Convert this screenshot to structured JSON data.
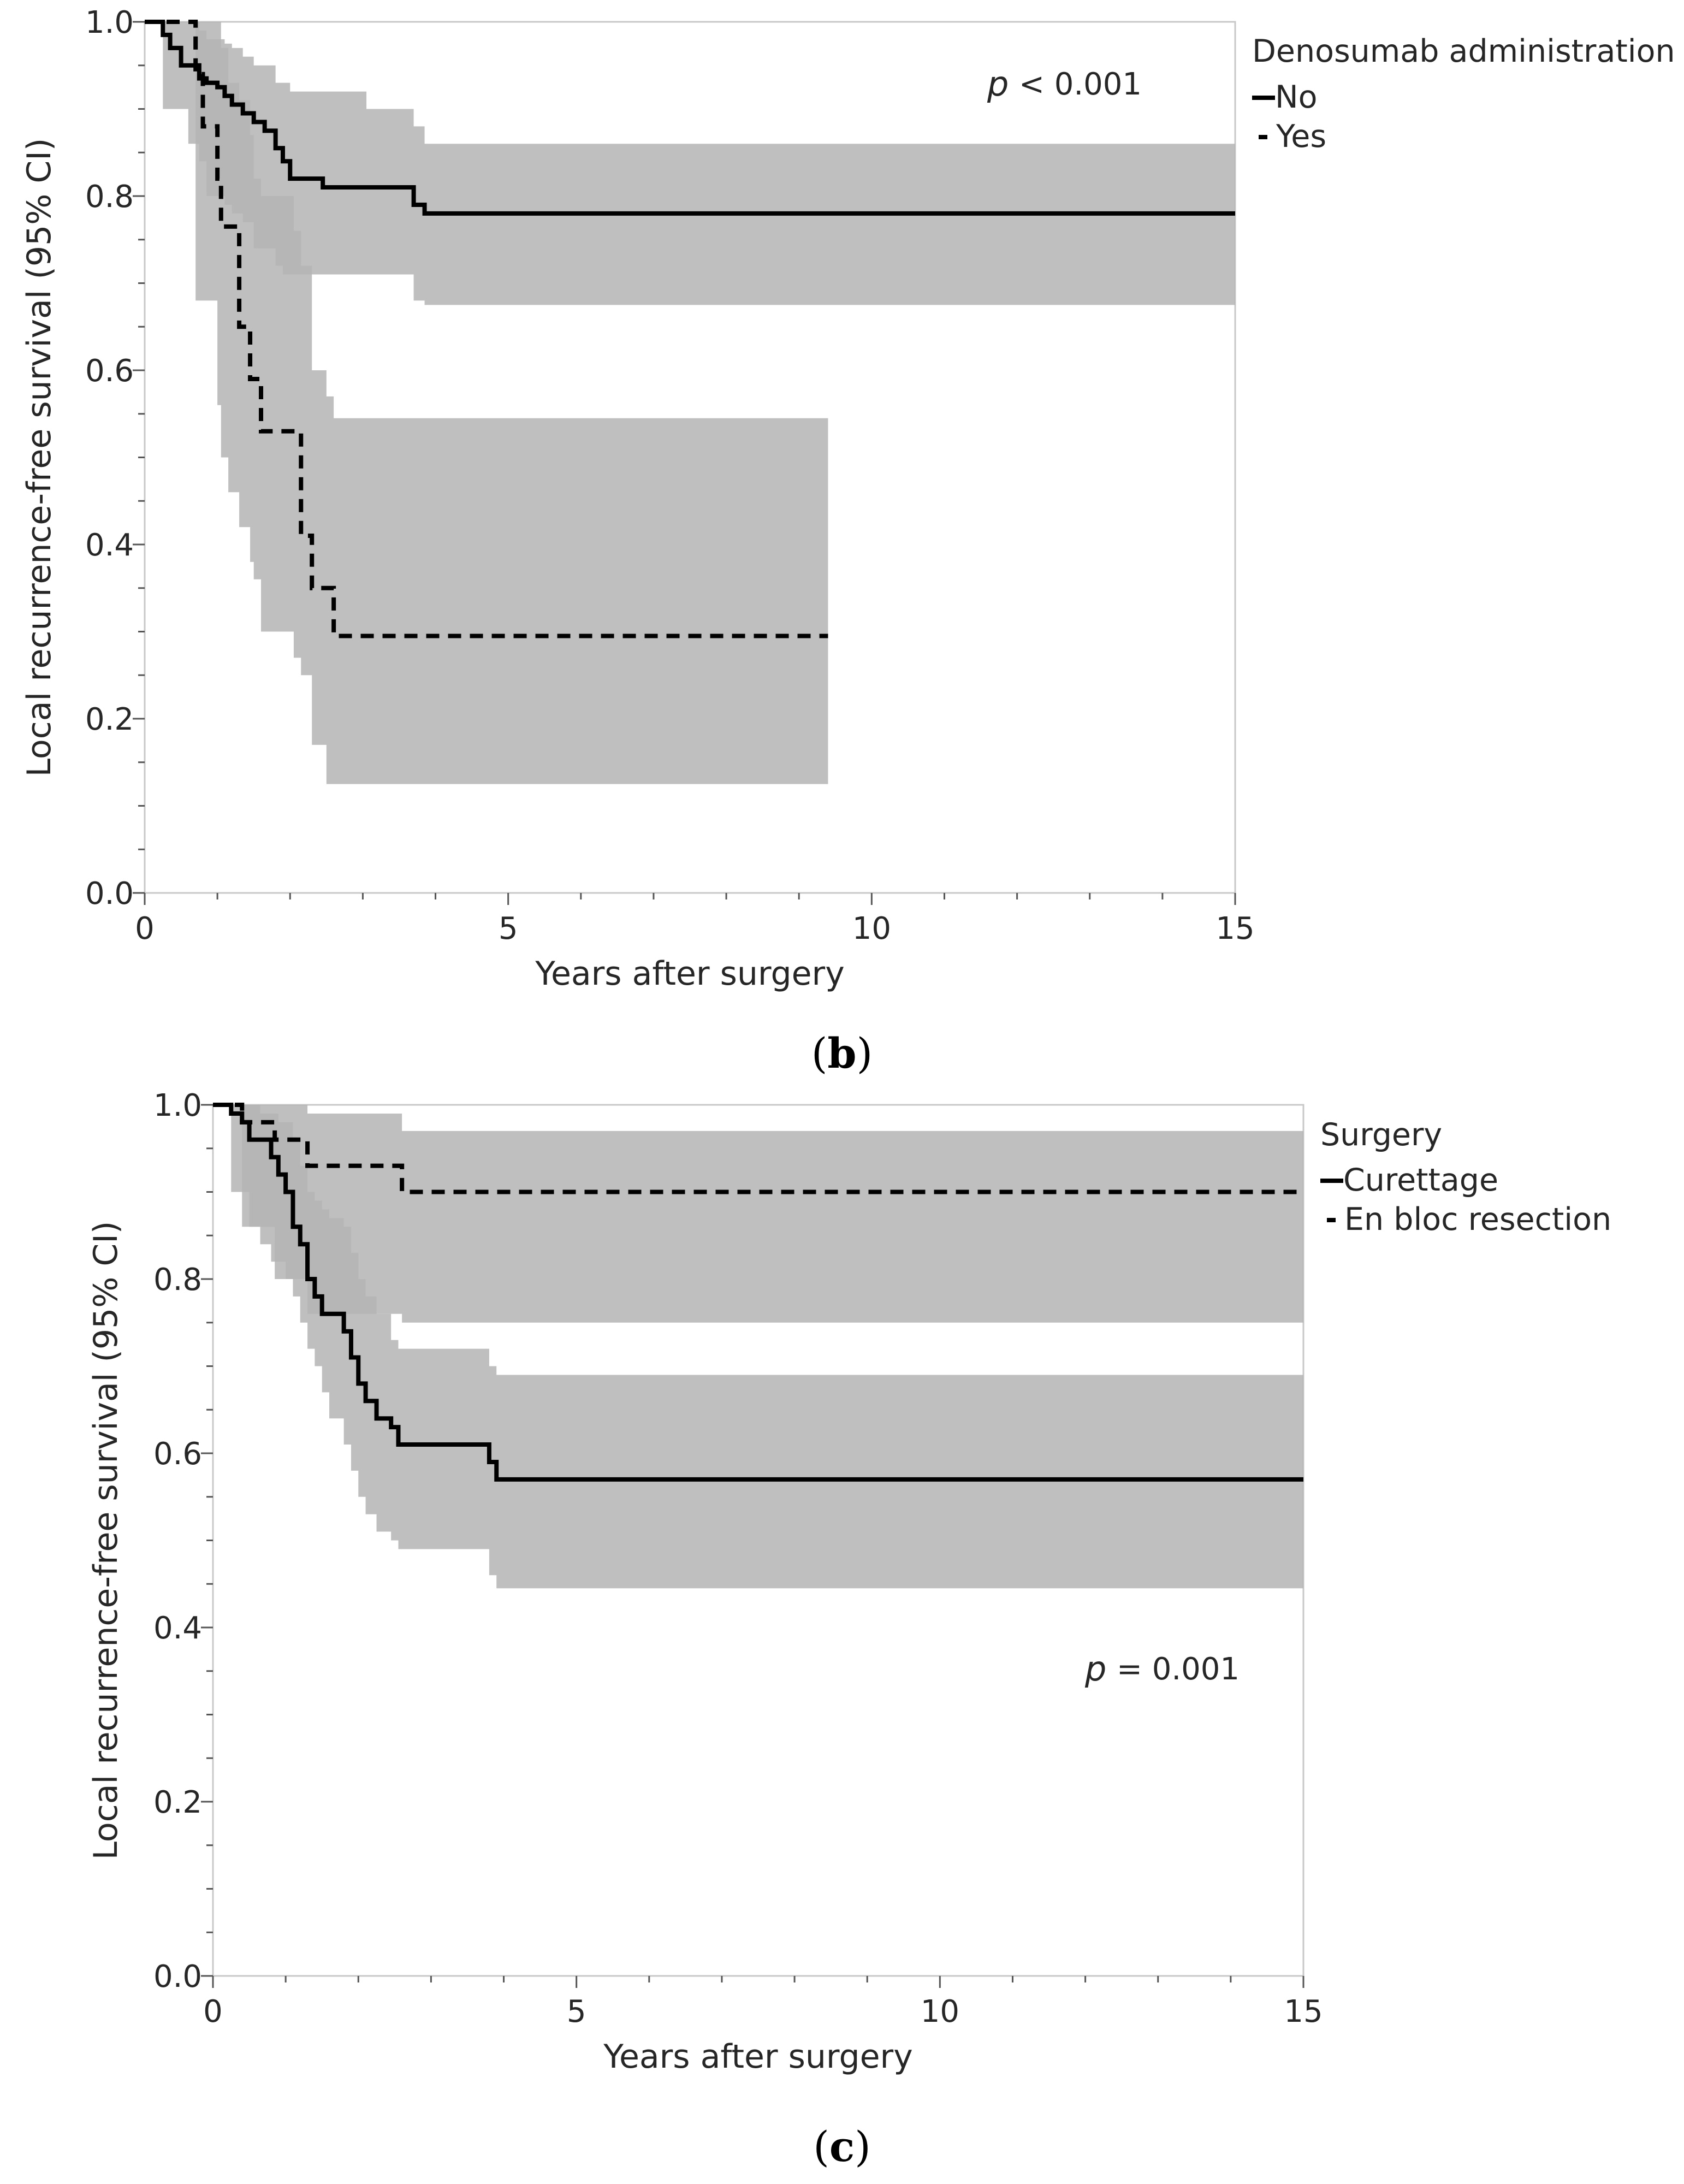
{
  "colors": {
    "ci_band": "#b4b4b4",
    "curve": "#000000",
    "frame": "#c8c8c8",
    "text": "#262626"
  },
  "chart_data": [
    {
      "type": "line",
      "subtype": "kaplan-meier step",
      "panel_label": "(b)",
      "panel_letter": "b",
      "xlabel": "Years after surgery",
      "ylabel": "Local recurrence-free survival (95% CI)",
      "xlim": [
        0,
        15
      ],
      "ylim": [
        0,
        1.0
      ],
      "xticks": [
        0,
        5,
        10,
        15
      ],
      "yticks": [
        0.0,
        0.2,
        0.4,
        0.6,
        0.8,
        1.0
      ],
      "ytick_labels": [
        "0.0",
        "0.2",
        "0.4",
        "0.6",
        "0.8",
        "1.0"
      ],
      "grid": false,
      "legend": {
        "title": "Denosumab administration",
        "position": "right-outside-top"
      },
      "annotation": {
        "p": "p",
        "text": "< 0.001",
        "x": 11.8,
        "y": 0.94
      },
      "series": [
        {
          "name": "No",
          "style": "solid",
          "x": [
            0,
            0.25,
            0.35,
            0.5,
            0.6,
            0.75,
            0.85,
            1.0,
            1.1,
            1.2,
            1.35,
            1.5,
            1.65,
            1.8,
            1.9,
            2.0,
            2.45,
            3.05,
            3.7,
            3.85,
            15
          ],
          "y": [
            1.0,
            0.985,
            0.97,
            0.95,
            0.95,
            0.935,
            0.93,
            0.925,
            0.915,
            0.905,
            0.895,
            0.885,
            0.875,
            0.855,
            0.84,
            0.82,
            0.81,
            0.81,
            0.79,
            0.78,
            0.78
          ],
          "ci_lower": [
            1.0,
            0.9,
            0.9,
            0.9,
            0.86,
            0.84,
            0.8,
            0.8,
            0.79,
            0.78,
            0.77,
            0.74,
            0.74,
            0.72,
            0.71,
            0.71,
            0.71,
            0.71,
            0.68,
            0.675,
            0.675
          ],
          "ci_upper": [
            1.0,
            1.0,
            1.0,
            1.0,
            1.0,
            0.99,
            0.98,
            0.98,
            0.975,
            0.97,
            0.96,
            0.95,
            0.95,
            0.93,
            0.93,
            0.92,
            0.92,
            0.9,
            0.88,
            0.86,
            0.86
          ]
        },
        {
          "name": "Yes",
          "style": "dashed",
          "x": [
            0,
            0.7,
            0.8,
            1.0,
            1.05,
            1.15,
            1.3,
            1.45,
            1.5,
            1.6,
            2.05,
            2.15,
            2.3,
            2.5,
            2.6,
            9.4
          ],
          "y": [
            1.0,
            0.94,
            0.88,
            0.82,
            0.765,
            0.765,
            0.65,
            0.59,
            0.59,
            0.53,
            0.53,
            0.41,
            0.35,
            0.35,
            0.295,
            0.295
          ],
          "ci_lower": [
            1.0,
            0.68,
            0.68,
            0.56,
            0.5,
            0.46,
            0.42,
            0.38,
            0.36,
            0.3,
            0.27,
            0.25,
            0.17,
            0.125,
            0.125,
            0.125
          ],
          "ci_upper": [
            1.0,
            1.0,
            1.0,
            1.0,
            0.97,
            0.93,
            0.91,
            0.87,
            0.82,
            0.8,
            0.76,
            0.72,
            0.6,
            0.57,
            0.545,
            0.545
          ]
        }
      ]
    },
    {
      "type": "line",
      "subtype": "kaplan-meier step",
      "panel_label": "(c)",
      "panel_letter": "c",
      "xlabel": "Years after surgery",
      "ylabel": "Local recurrence-free survival (95% CI)",
      "xlim": [
        0,
        15
      ],
      "ylim": [
        0,
        1.0
      ],
      "xticks": [
        0,
        5,
        10,
        15
      ],
      "yticks": [
        0.0,
        0.2,
        0.4,
        0.6,
        0.8,
        1.0
      ],
      "ytick_labels": [
        "0.0",
        "0.2",
        "0.4",
        "0.6",
        "0.8",
        "1.0"
      ],
      "grid": false,
      "legend": {
        "title": "Surgery",
        "position": "right-outside-top"
      },
      "annotation": {
        "p": "p",
        "text": "= 0.001",
        "x": 13.0,
        "y": 0.35
      },
      "series": [
        {
          "name": "Curettage",
          "style": "solid",
          "x": [
            0,
            0.25,
            0.4,
            0.5,
            0.65,
            0.8,
            0.9,
            1.0,
            1.1,
            1.2,
            1.3,
            1.4,
            1.5,
            1.6,
            1.8,
            1.9,
            2.0,
            2.1,
            2.25,
            2.45,
            2.55,
            3.65,
            3.8,
            3.9,
            15
          ],
          "y": [
            1.0,
            0.99,
            0.98,
            0.96,
            0.96,
            0.94,
            0.92,
            0.9,
            0.86,
            0.84,
            0.8,
            0.78,
            0.76,
            0.76,
            0.74,
            0.71,
            0.68,
            0.66,
            0.64,
            0.63,
            0.61,
            0.61,
            0.59,
            0.57,
            0.57
          ],
          "ci_lower": [
            1.0,
            0.9,
            0.9,
            0.86,
            0.84,
            0.82,
            0.82,
            0.8,
            0.78,
            0.75,
            0.72,
            0.7,
            0.67,
            0.64,
            0.61,
            0.58,
            0.55,
            0.53,
            0.51,
            0.5,
            0.49,
            0.49,
            0.46,
            0.445,
            0.445
          ],
          "ci_upper": [
            1.0,
            1.0,
            1.0,
            1.0,
            0.99,
            0.99,
            0.98,
            0.98,
            0.96,
            0.93,
            0.9,
            0.89,
            0.88,
            0.87,
            0.86,
            0.83,
            0.8,
            0.78,
            0.76,
            0.73,
            0.72,
            0.72,
            0.7,
            0.69,
            0.69
          ]
        },
        {
          "name": "En bloc resection",
          "style": "dashed",
          "x": [
            0,
            0.4,
            0.6,
            0.85,
            1.2,
            1.3,
            2.55,
            2.6,
            15
          ],
          "y": [
            1.0,
            0.98,
            0.98,
            0.96,
            0.96,
            0.93,
            0.93,
            0.9,
            0.9
          ],
          "ci_lower": [
            1.0,
            0.86,
            0.86,
            0.8,
            0.8,
            0.76,
            0.76,
            0.75,
            0.75
          ],
          "ci_upper": [
            1.0,
            1.0,
            1.0,
            1.0,
            1.0,
            0.99,
            0.99,
            0.97,
            0.97
          ]
        }
      ]
    }
  ]
}
